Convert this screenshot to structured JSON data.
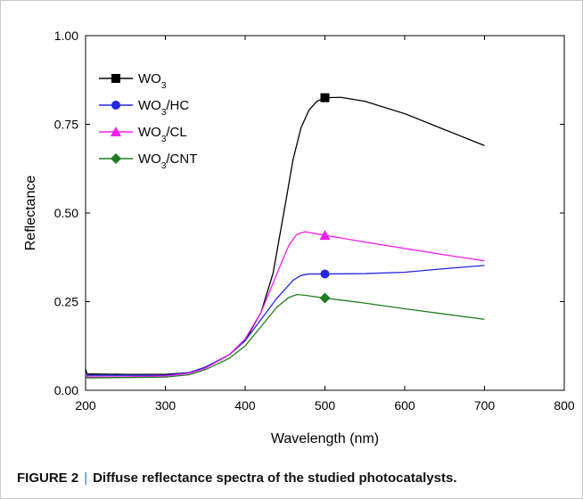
{
  "chart_data": {
    "type": "line",
    "xlabel": "Wavelength (nm)",
    "ylabel": "Reflectance",
    "xlim": [
      200,
      800
    ],
    "ylim": [
      0,
      1
    ],
    "xticks": [
      200,
      300,
      400,
      500,
      600,
      700,
      800
    ],
    "yticks": [
      0,
      0.25,
      0.5,
      0.75,
      1
    ],
    "xtick_labels": [
      "200",
      "300",
      "400",
      "500",
      "600",
      "700",
      "800"
    ],
    "ytick_labels": [
      "0.00",
      "0.25",
      "0.50",
      "0.75",
      "1.00"
    ],
    "legend_position": "top-left",
    "grid": false,
    "series": [
      {
        "name": "WO3",
        "label_base": "WO",
        "label_sub": "3",
        "label_suffix": "",
        "color": "#000000",
        "marker": "square",
        "marker_x": 500,
        "x": [
          200,
          202,
          205,
          250,
          300,
          330,
          350,
          380,
          400,
          420,
          435,
          450,
          460,
          470,
          480,
          490,
          500,
          520,
          550,
          600,
          650,
          700
        ],
        "y": [
          0.06,
          0.045,
          0.046,
          0.045,
          0.045,
          0.05,
          0.065,
          0.1,
          0.14,
          0.22,
          0.33,
          0.52,
          0.65,
          0.74,
          0.79,
          0.815,
          0.825,
          0.826,
          0.815,
          0.78,
          0.735,
          0.69
        ]
      },
      {
        "name": "WO3/HC",
        "label_base": "WO",
        "label_sub": "3",
        "label_suffix": "/HC",
        "color": "#2326e0",
        "marker": "circle",
        "marker_x": 500,
        "x": [
          200,
          202,
          205,
          250,
          300,
          330,
          350,
          380,
          400,
          420,
          440,
          460,
          470,
          480,
          500,
          550,
          600,
          650,
          700
        ],
        "y": [
          0.05,
          0.042,
          0.042,
          0.042,
          0.042,
          0.05,
          0.065,
          0.1,
          0.14,
          0.2,
          0.26,
          0.31,
          0.324,
          0.328,
          0.328,
          0.329,
          0.333,
          0.343,
          0.352
        ]
      },
      {
        "name": "WO3/CL",
        "label_base": "WO",
        "label_sub": "3",
        "label_suffix": "/CL",
        "color": "#f01ef0",
        "marker": "triangle",
        "marker_x": 500,
        "x": [
          200,
          202,
          205,
          250,
          300,
          330,
          350,
          380,
          400,
          420,
          440,
          455,
          465,
          475,
          480,
          500,
          550,
          600,
          650,
          700
        ],
        "y": [
          0.045,
          0.038,
          0.038,
          0.038,
          0.04,
          0.048,
          0.062,
          0.1,
          0.145,
          0.22,
          0.33,
          0.41,
          0.44,
          0.447,
          0.445,
          0.437,
          0.418,
          0.4,
          0.382,
          0.365
        ]
      },
      {
        "name": "WO3/CNT",
        "label_base": "WO",
        "label_sub": "3",
        "label_suffix": "/CNT",
        "color": "#1e7d1e",
        "marker": "diamond",
        "marker_x": 500,
        "x": [
          200,
          202,
          205,
          250,
          300,
          330,
          350,
          380,
          400,
          420,
          440,
          455,
          465,
          475,
          500,
          550,
          600,
          650,
          700
        ],
        "y": [
          0.04,
          0.035,
          0.035,
          0.036,
          0.037,
          0.044,
          0.058,
          0.09,
          0.125,
          0.18,
          0.235,
          0.262,
          0.27,
          0.268,
          0.26,
          0.246,
          0.23,
          0.215,
          0.2
        ]
      }
    ]
  },
  "caption": {
    "label": "FIGURE 2",
    "separator": "|",
    "text": "Diffuse reflectance spectra of the studied photocatalysts."
  }
}
